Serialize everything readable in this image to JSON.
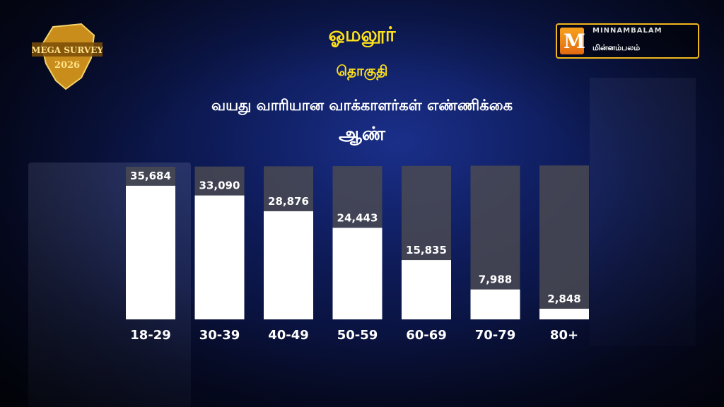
{
  "badge": {
    "line1": "MEGA SURVEY",
    "line2": "2026"
  },
  "logo": {
    "en": "MINNAMBALAM",
    "ta": "மின்னம்பலம்",
    "mark": "M"
  },
  "header": {
    "title": "ஓமலூர்",
    "subtitle": "தொகுதி",
    "description": "வயது வாரியான வாக்காளர்கள் எண்ணிக்கை",
    "gender": "ஆண்"
  },
  "colors": {
    "title": "#ffe11a",
    "bar": "#ffffff",
    "track": "#4a4a52",
    "accent": "#f2b71c"
  },
  "chart_data": {
    "type": "bar",
    "title": "வயது வாரியான வாக்காளர்கள் எண்ணிக்கை",
    "categories": [
      "18-29",
      "30-39",
      "40-49",
      "50-59",
      "60-69",
      "70-79",
      "80+"
    ],
    "values": [
      35684,
      33090,
      28876,
      24443,
      15835,
      7988,
      2848
    ],
    "value_labels": [
      "35,684",
      "33,090",
      "28,876",
      "24,443",
      "15,835",
      "7,988",
      "2,848"
    ],
    "xlabel": "",
    "ylabel": "",
    "ylim": [
      0,
      40000
    ],
    "grid": false,
    "legend": "none"
  }
}
